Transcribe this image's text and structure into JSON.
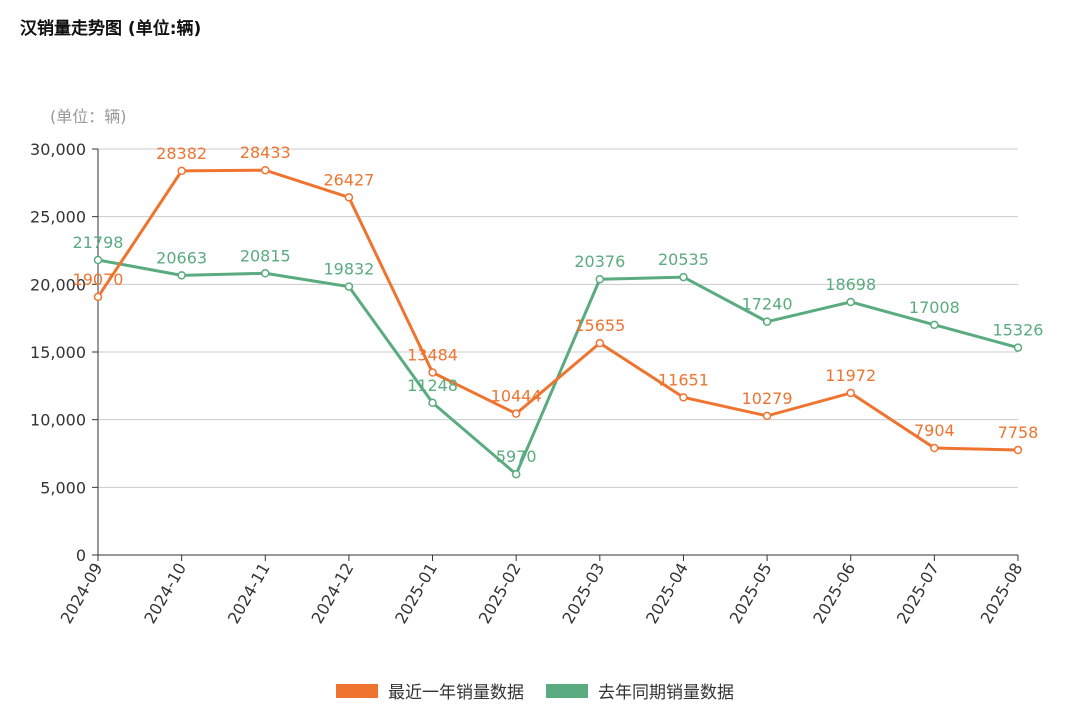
{
  "title": "汉销量走势图 (单位:辆)",
  "chart_data": {
    "type": "line",
    "title": "汉销量走势图 (单位:辆)",
    "ylabel": "(单位：辆)",
    "xlabel": "",
    "categories": [
      "2024-09",
      "2024-10",
      "2024-11",
      "2024-12",
      "2025-01",
      "2025-02",
      "2025-03",
      "2025-04",
      "2025-05",
      "2025-06",
      "2025-07",
      "2025-08"
    ],
    "ylim": [
      0,
      30000
    ],
    "yticks": [
      0,
      5000,
      10000,
      15000,
      20000,
      25000,
      30000
    ],
    "ytick_labels": [
      "0",
      "5,000",
      "10,000",
      "15,000",
      "20,000",
      "25,000",
      "30,000"
    ],
    "grid": true,
    "legend": "bottom",
    "series": [
      {
        "name": "最近一年销量数据",
        "color": "#ee7430",
        "values": [
          19070,
          28382,
          28433,
          26427,
          13484,
          10444,
          15655,
          11651,
          10279,
          11972,
          7904,
          7758
        ]
      },
      {
        "name": "去年同期销量数据",
        "color": "#5aab7f",
        "values": [
          21798,
          20663,
          20815,
          19832,
          11248,
          5970,
          20376,
          20535,
          17240,
          18698,
          17008,
          15326
        ]
      }
    ]
  }
}
